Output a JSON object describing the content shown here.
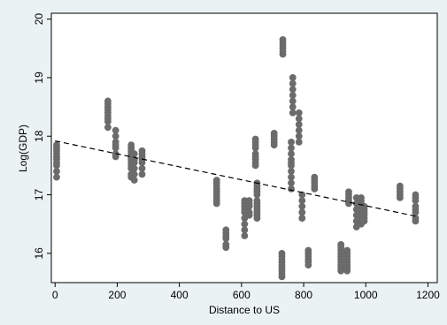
{
  "chart_data": {
    "type": "scatter",
    "title": "",
    "xlabel": "Distance to US",
    "ylabel": "Log(GDP)",
    "xlim": [
      -12,
      1230
    ],
    "ylim": [
      15.5,
      20.1
    ],
    "x_ticks": [
      0,
      200,
      400,
      600,
      800,
      1000,
      1200
    ],
    "y_ticks": [
      16,
      17,
      18,
      19,
      20
    ],
    "grid": false,
    "legend": "none",
    "series": [
      {
        "marker_color": "#6b6b6b",
        "groups": [
          {
            "x": 5,
            "y": [
              17.3,
              17.4,
              17.5,
              17.55,
              17.6,
              17.65,
              17.7,
              17.75,
              17.8,
              17.85
            ]
          },
          {
            "x": 170,
            "y": [
              18.15,
              18.25,
              18.3,
              18.35,
              18.4,
              18.45,
              18.5,
              18.55,
              18.6
            ]
          },
          {
            "x": 195,
            "y": [
              17.65,
              17.7,
              17.8,
              17.85,
              17.9,
              18.0,
              18.1
            ]
          },
          {
            "x": 245,
            "y": [
              17.3,
              17.35,
              17.45,
              17.5,
              17.55,
              17.6,
              17.65,
              17.7,
              17.75,
              17.8,
              17.85
            ]
          },
          {
            "x": 255,
            "y": [
              17.25,
              17.35,
              17.45,
              17.55,
              17.6,
              17.7
            ]
          },
          {
            "x": 280,
            "y": [
              17.35,
              17.45,
              17.55,
              17.6,
              17.65,
              17.7,
              17.75
            ]
          },
          {
            "x": 520,
            "y": [
              16.85,
              16.9,
              16.95,
              17.0,
              17.05,
              17.1,
              17.15,
              17.2,
              17.25
            ]
          },
          {
            "x": 550,
            "y": [
              16.1,
              16.15,
              16.25,
              16.3,
              16.35,
              16.4
            ]
          },
          {
            "x": 610,
            "y": [
              16.3,
              16.4,
              16.5,
              16.6,
              16.7,
              16.75,
              16.8,
              16.85,
              16.9
            ]
          },
          {
            "x": 625,
            "y": [
              16.65,
              16.7,
              16.8,
              16.85,
              16.9
            ]
          },
          {
            "x": 645,
            "y": [
              17.5,
              17.55,
              17.6,
              17.65,
              17.7,
              17.8,
              17.85,
              17.9,
              17.95
            ]
          },
          {
            "x": 650,
            "y": [
              16.6,
              16.65,
              16.7,
              16.75,
              16.8,
              16.85,
              16.9,
              17.0,
              17.05,
              17.1,
              17.15,
              17.2
            ]
          },
          {
            "x": 705,
            "y": [
              17.85,
              17.9,
              17.95,
              18.0,
              18.05
            ]
          },
          {
            "x": 730,
            "y": [
              15.6,
              15.65,
              15.7,
              15.75,
              15.8,
              15.85,
              15.9,
              15.95,
              16.0
            ]
          },
          {
            "x": 733,
            "y": [
              19.4,
              19.45,
              19.5,
              19.55,
              19.6,
              19.65
            ]
          },
          {
            "x": 760,
            "y": [
              17.1,
              17.2,
              17.3,
              17.4,
              17.5,
              17.55,
              17.6,
              17.7,
              17.8,
              17.9
            ]
          },
          {
            "x": 765,
            "y": [
              18.4,
              18.5,
              18.6,
              18.7,
              18.8,
              18.9,
              19.0
            ]
          },
          {
            "x": 785,
            "y": [
              17.9,
              18.0,
              18.1,
              18.2,
              18.3,
              18.4
            ]
          },
          {
            "x": 795,
            "y": [
              16.6,
              16.7,
              16.8,
              16.9,
              17.0
            ]
          },
          {
            "x": 815,
            "y": [
              15.8,
              15.85,
              15.9,
              15.95,
              16.0,
              16.05
            ]
          },
          {
            "x": 835,
            "y": [
              17.1,
              17.15,
              17.2,
              17.25,
              17.3
            ]
          },
          {
            "x": 920,
            "y": [
              15.7,
              15.75,
              15.8,
              15.85,
              15.9,
              15.95,
              16.0,
              16.05,
              16.1,
              16.15
            ]
          },
          {
            "x": 940,
            "y": [
              15.7,
              15.75,
              15.8,
              15.85,
              15.9,
              15.95,
              16.0,
              16.05
            ]
          },
          {
            "x": 945,
            "y": [
              16.85,
              16.9,
              16.95,
              17.0,
              17.05
            ]
          },
          {
            "x": 970,
            "y": [
              16.45,
              16.55,
              16.65,
              16.75,
              16.85,
              16.95
            ]
          },
          {
            "x": 985,
            "y": [
              16.5,
              16.55,
              16.6,
              16.65,
              16.7,
              16.75,
              16.8,
              16.85,
              16.9,
              16.95
            ]
          },
          {
            "x": 995,
            "y": [
              16.55,
              16.6,
              16.65,
              16.7,
              16.75,
              16.8
            ]
          },
          {
            "x": 1110,
            "y": [
              16.95,
              17.0,
              17.05,
              17.1,
              17.15
            ]
          },
          {
            "x": 1160,
            "y": [
              16.55,
              16.6,
              16.7,
              16.75,
              16.8,
              16.9,
              16.95,
              17.0
            ]
          }
        ]
      }
    ],
    "fit_line": {
      "style": "dashed",
      "color": "#000000",
      "x": [
        0,
        1165
      ],
      "y": [
        17.92,
        16.63
      ]
    }
  }
}
